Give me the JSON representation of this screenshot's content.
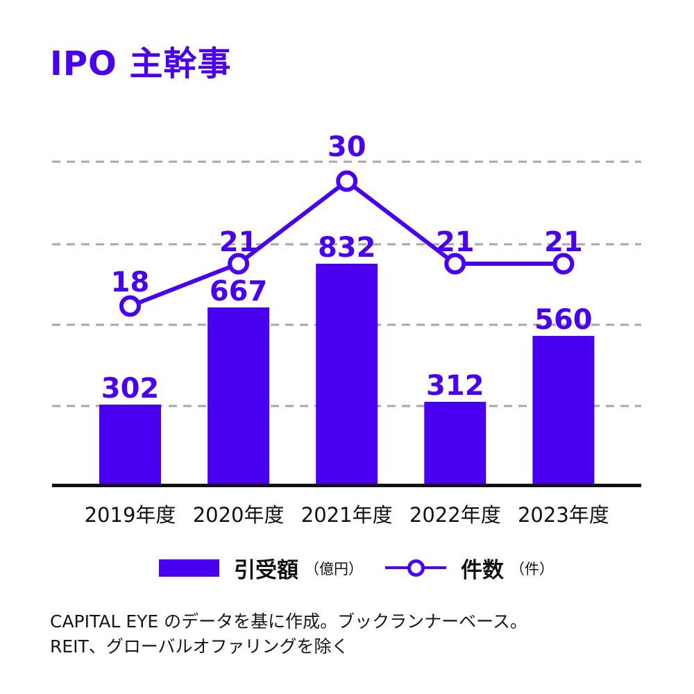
{
  "title": "IPO 主幹事",
  "colors": {
    "accent": "#4a00f0",
    "grid": "#a6a6a6",
    "axis": "#111111",
    "tick_text": "#111111",
    "footnote_text": "#161616"
  },
  "chart_data": {
    "type": "bar",
    "subtype": "bar-line-combo",
    "categories": [
      "2019年度",
      "2020年度",
      "2021年度",
      "2022年度",
      "2023年度"
    ],
    "series": [
      {
        "name": "引受額",
        "unit": "（億円）",
        "type": "bar",
        "values": [
          302,
          667,
          832,
          312,
          560
        ]
      },
      {
        "name": "件数",
        "unit": "（件）",
        "type": "line",
        "values": [
          18,
          21,
          30,
          21,
          21
        ]
      }
    ],
    "title": "IPO 主幹事",
    "xlabel": "",
    "ylabel": "",
    "ylim_bar": [
      0,
      1200
    ],
    "gridlines": {
      "style": "dashed",
      "values_bar_axis": [
        300,
        600,
        900,
        1200
      ]
    },
    "data_labels": "all points labeled",
    "legend_position": "bottom"
  },
  "legend": {
    "bar_label": "引受額",
    "bar_unit": "（億円）",
    "line_label": "件数",
    "line_unit": "（件）"
  },
  "footnotes": [
    "CAPITAL EYE のデータを基に作成。ブックランナーベース。",
    "REIT、グローバルオファリングを除く"
  ]
}
